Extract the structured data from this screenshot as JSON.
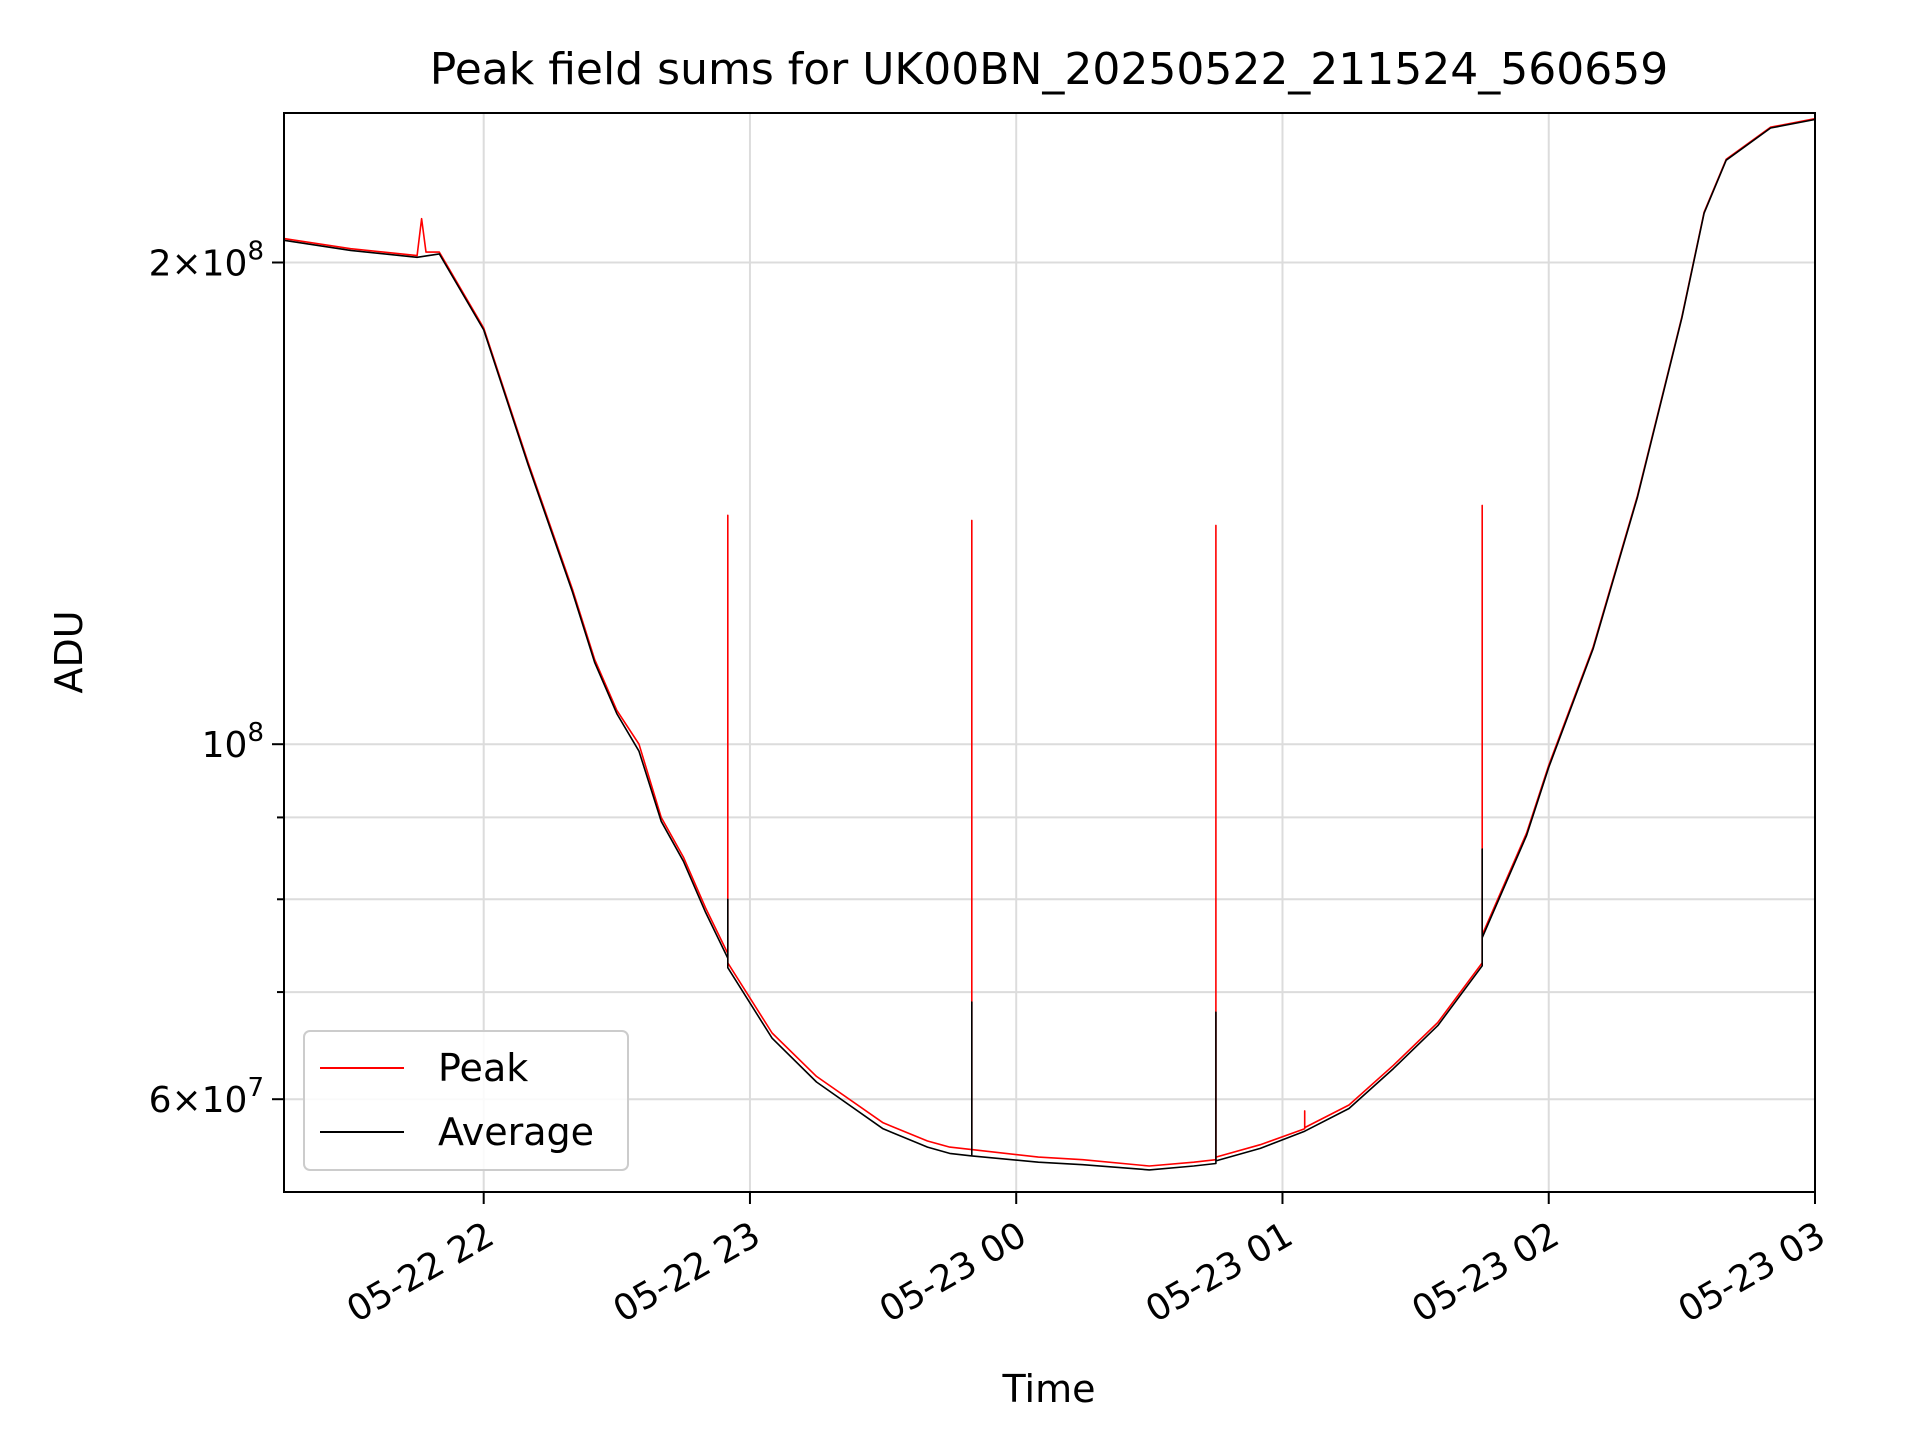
{
  "chart_data": {
    "type": "line",
    "title": "Peak field sums for UK00BN_20250522_211524_560659",
    "xlabel": "Time",
    "ylabel": "ADU",
    "yscale": "log",
    "xlim": [
      "2025-05-22T21:15",
      "2025-05-23T03:00"
    ],
    "ylim": [
      52500000,
      248000000
    ],
    "grid": true,
    "legend": "lower-left",
    "x_ticks": [
      {
        "t": "2025-05-22T22:00",
        "label": "05-22 22"
      },
      {
        "t": "2025-05-22T23:00",
        "label": "05-22 23"
      },
      {
        "t": "2025-05-23T00:00",
        "label": "05-23 00"
      },
      {
        "t": "2025-05-23T01:00",
        "label": "05-23 01"
      },
      {
        "t": "2025-05-23T02:00",
        "label": "05-23 02"
      },
      {
        "t": "2025-05-23T03:00",
        "label": "05-23 03"
      }
    ],
    "y_ticks_major": [
      {
        "v": 60000000,
        "base": "6×10",
        "exp": "7"
      },
      {
        "v": 100000000,
        "base": "10",
        "exp": "8"
      },
      {
        "v": 200000000,
        "base": "2×10",
        "exp": "8"
      }
    ],
    "y_ticks_minor": [
      70000000,
      80000000,
      90000000
    ],
    "colors": {
      "peak": "#ff0000",
      "average": "#000000"
    },
    "series": [
      {
        "name": "Peak",
        "color": "#ff0000",
        "points": [
          [
            "2025-05-22T21:15",
            207000000
          ],
          [
            "2025-05-22T21:30",
            204000000
          ],
          [
            "2025-05-22T21:45",
            202000000
          ],
          [
            "2025-05-22T21:46",
            213000000
          ],
          [
            "2025-05-22T21:47",
            203000000
          ],
          [
            "2025-05-22T21:50",
            203000000
          ],
          [
            "2025-05-22T22:00",
            182000000
          ],
          [
            "2025-05-22T22:10",
            150000000
          ],
          [
            "2025-05-22T22:20",
            125000000
          ],
          [
            "2025-05-22T22:25",
            113000000
          ],
          [
            "2025-05-22T22:30",
            105000000
          ],
          [
            "2025-05-22T22:35",
            100000000
          ],
          [
            "2025-05-22T22:40",
            90000000
          ],
          [
            "2025-05-22T22:45",
            85000000
          ],
          [
            "2025-05-22T22:50",
            79000000
          ],
          [
            "2025-05-22T22:55",
            74000000
          ],
          [
            "2025-05-22T22:55",
            139000000
          ],
          [
            "2025-05-22T22:55",
            73000000
          ],
          [
            "2025-05-22T23:05",
            66000000
          ],
          [
            "2025-05-22T23:15",
            62000000
          ],
          [
            "2025-05-22T23:30",
            58000000
          ],
          [
            "2025-05-22T23:40",
            56500000
          ],
          [
            "2025-05-22T23:45",
            56000000
          ],
          [
            "2025-05-22T23:50",
            55800000
          ],
          [
            "2025-05-22T23:50",
            138000000
          ],
          [
            "2025-05-22T23:50",
            55800000
          ],
          [
            "2025-05-23T00:05",
            55200000
          ],
          [
            "2025-05-23T00:15",
            55000000
          ],
          [
            "2025-05-23T00:30",
            54500000
          ],
          [
            "2025-05-23T00:40",
            54800000
          ],
          [
            "2025-05-23T00:45",
            55000000
          ],
          [
            "2025-05-23T00:45",
            137000000
          ],
          [
            "2025-05-23T00:45",
            55200000
          ],
          [
            "2025-05-23T00:55",
            56200000
          ],
          [
            "2025-05-23T01:05",
            57500000
          ],
          [
            "2025-05-23T01:05",
            59000000
          ],
          [
            "2025-05-23T01:05",
            57600000
          ],
          [
            "2025-05-23T01:15",
            59500000
          ],
          [
            "2025-05-23T01:25",
            63000000
          ],
          [
            "2025-05-23T01:35",
            67000000
          ],
          [
            "2025-05-23T01:45",
            73000000
          ],
          [
            "2025-05-23T01:45",
            141000000
          ],
          [
            "2025-05-23T01:45",
            76000000
          ],
          [
            "2025-05-23T01:55",
            88000000
          ],
          [
            "2025-05-23T02:00",
            97000000
          ],
          [
            "2025-05-23T02:10",
            115000000
          ],
          [
            "2025-05-23T02:20",
            143000000
          ],
          [
            "2025-05-23T02:30",
            185000000
          ],
          [
            "2025-05-23T02:35",
            215000000
          ],
          [
            "2025-05-23T02:40",
            232000000
          ],
          [
            "2025-05-23T02:50",
            243000000
          ],
          [
            "2025-05-23T03:00",
            246000000
          ]
        ]
      },
      {
        "name": "Average",
        "color": "#000000",
        "points": [
          [
            "2025-05-22T21:15",
            206500000
          ],
          [
            "2025-05-22T21:30",
            203500000
          ],
          [
            "2025-05-22T21:45",
            201500000
          ],
          [
            "2025-05-22T21:50",
            202500000
          ],
          [
            "2025-05-22T22:00",
            181500000
          ],
          [
            "2025-05-22T22:10",
            149500000
          ],
          [
            "2025-05-22T22:20",
            124500000
          ],
          [
            "2025-05-22T22:25",
            112500000
          ],
          [
            "2025-05-22T22:30",
            104500000
          ],
          [
            "2025-05-22T22:35",
            99000000
          ],
          [
            "2025-05-22T22:40",
            89500000
          ],
          [
            "2025-05-22T22:45",
            84500000
          ],
          [
            "2025-05-22T22:50",
            78500000
          ],
          [
            "2025-05-22T22:55",
            73500000
          ],
          [
            "2025-05-22T22:55",
            80000000
          ],
          [
            "2025-05-22T22:55",
            72500000
          ],
          [
            "2025-05-22T23:05",
            65500000
          ],
          [
            "2025-05-22T23:15",
            61500000
          ],
          [
            "2025-05-22T23:30",
            57500000
          ],
          [
            "2025-05-22T23:40",
            56000000
          ],
          [
            "2025-05-22T23:45",
            55500000
          ],
          [
            "2025-05-22T23:50",
            55300000
          ],
          [
            "2025-05-22T23:50",
            69000000
          ],
          [
            "2025-05-22T23:50",
            55300000
          ],
          [
            "2025-05-23T00:05",
            54800000
          ],
          [
            "2025-05-23T00:15",
            54600000
          ],
          [
            "2025-05-23T00:30",
            54200000
          ],
          [
            "2025-05-23T00:40",
            54500000
          ],
          [
            "2025-05-23T00:45",
            54700000
          ],
          [
            "2025-05-23T00:45",
            68000000
          ],
          [
            "2025-05-23T00:45",
            54900000
          ],
          [
            "2025-05-23T00:55",
            55900000
          ],
          [
            "2025-05-23T01:05",
            57300000
          ],
          [
            "2025-05-23T01:15",
            59200000
          ],
          [
            "2025-05-23T01:25",
            62700000
          ],
          [
            "2025-05-23T01:35",
            66700000
          ],
          [
            "2025-05-23T01:45",
            72700000
          ],
          [
            "2025-05-23T01:45",
            86000000
          ],
          [
            "2025-05-23T01:45",
            75700000
          ],
          [
            "2025-05-23T01:55",
            87700000
          ],
          [
            "2025-05-23T02:00",
            96700000
          ],
          [
            "2025-05-23T02:10",
            114700000
          ],
          [
            "2025-05-23T02:20",
            142700000
          ],
          [
            "2025-05-23T02:30",
            184700000
          ],
          [
            "2025-05-23T02:35",
            214700000
          ],
          [
            "2025-05-23T02:40",
            231700000
          ],
          [
            "2025-05-23T02:50",
            242700000
          ],
          [
            "2025-05-23T03:00",
            245700000
          ]
        ]
      }
    ]
  }
}
